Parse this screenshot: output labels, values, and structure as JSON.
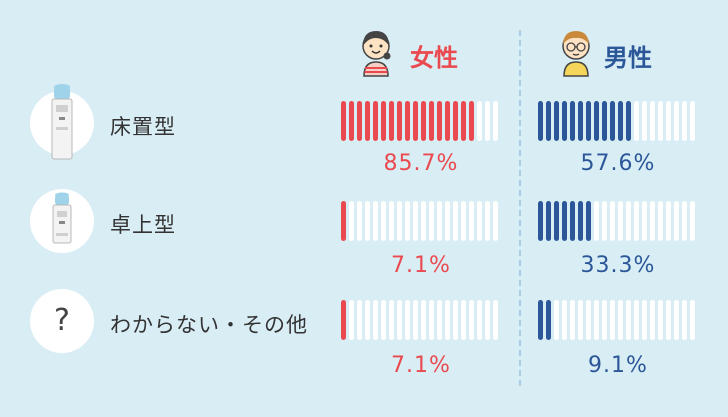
{
  "columns": [
    {
      "id": "female",
      "label": "女性",
      "color": "#ea4a4f",
      "avatar": "girl-avatar-icon"
    },
    {
      "id": "male",
      "label": "男性",
      "color": "#2b5799",
      "avatar": "boy-avatar-icon"
    }
  ],
  "rows": [
    {
      "label": "床置型",
      "icon": "floor-water-server-icon"
    },
    {
      "label": "卓上型",
      "icon": "tabletop-water-server-icon"
    },
    {
      "label": "わからない・その他",
      "icon": "question-icon",
      "icon_text": "?"
    }
  ],
  "percent_labels": {
    "female": [
      "85.7%",
      "7.1%",
      "7.1%"
    ],
    "male": [
      "57.6%",
      "33.3%",
      "9.1%"
    ]
  },
  "chart_data": {
    "type": "bar",
    "categories": [
      "床置型",
      "卓上型",
      "わからない・その他"
    ],
    "series": [
      {
        "name": "女性",
        "values": [
          85.7,
          7.1,
          7.1
        ],
        "color": "#ea4a4f"
      },
      {
        "name": "男性",
        "values": [
          57.6,
          33.3,
          9.1
        ],
        "color": "#2b5799"
      }
    ],
    "unit": "%",
    "ylim": [
      0,
      100
    ],
    "segments_per_bar": 20,
    "empty_color": "#ffffff"
  }
}
